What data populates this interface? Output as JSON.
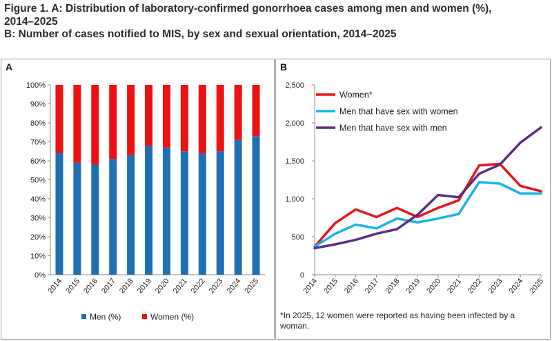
{
  "figure": {
    "title_line1": "Figure 1. A: Distribution of laboratory-confirmed gonorrhoea cases among men and women (%),",
    "title_line2": "2014–2025",
    "title_line3": "B: Number of cases notified to MIS, by sex and sexual orientation, 2014–2025"
  },
  "colors": {
    "men_bar": "#1f6fb5",
    "women_bar": "#ee1111",
    "women_line": "#e8141b",
    "msw_line": "#19b4ea",
    "msm_line": "#5b2c86"
  },
  "chart_data": [
    {
      "type": "bar",
      "panel_label": "A",
      "stacked": true,
      "categories": [
        "2014",
        "2015",
        "2016",
        "2017",
        "2018",
        "2019",
        "2020",
        "2021",
        "2022",
        "2023",
        "2024",
        "2025"
      ],
      "series": [
        {
          "name": "Men (%)",
          "values": [
            64,
            59,
            58,
            61,
            63,
            68,
            67,
            65,
            64,
            65,
            71,
            73
          ]
        },
        {
          "name": "Women (%)",
          "values": [
            36,
            41,
            42,
            39,
            37,
            32,
            33,
            35,
            36,
            35,
            29,
            27
          ]
        }
      ],
      "ylim": [
        0,
        100
      ],
      "yticks": [
        "0%",
        "10%",
        "20%",
        "30%",
        "40%",
        "50%",
        "60%",
        "70%",
        "80%",
        "90%",
        "100%"
      ],
      "legend_position": "bottom",
      "grid": false
    },
    {
      "type": "line",
      "panel_label": "B",
      "x": [
        "2014",
        "2015",
        "2016",
        "2017",
        "2018",
        "2019",
        "2020",
        "2021",
        "2022",
        "2023",
        "2024",
        "2025"
      ],
      "series": [
        {
          "name": "Women*",
          "values": [
            370,
            680,
            860,
            760,
            880,
            760,
            880,
            980,
            1440,
            1460,
            1170,
            1100
          ]
        },
        {
          "name": "Men that have sex with women",
          "values": [
            370,
            540,
            660,
            610,
            740,
            690,
            740,
            800,
            1220,
            1200,
            1070,
            1070
          ]
        },
        {
          "name": "Men that have sex with men",
          "values": [
            350,
            400,
            460,
            540,
            600,
            790,
            1050,
            1020,
            1330,
            1450,
            1740,
            1940
          ]
        }
      ],
      "ylim": [
        0,
        2500
      ],
      "yticks": [
        "0",
        "500",
        "1,000",
        "1,500",
        "2,000",
        "2,500"
      ],
      "legend_position": "top-left",
      "grid": false,
      "footnote": "*In 2025, 12 women were reported as having been infected by a woman."
    }
  ]
}
